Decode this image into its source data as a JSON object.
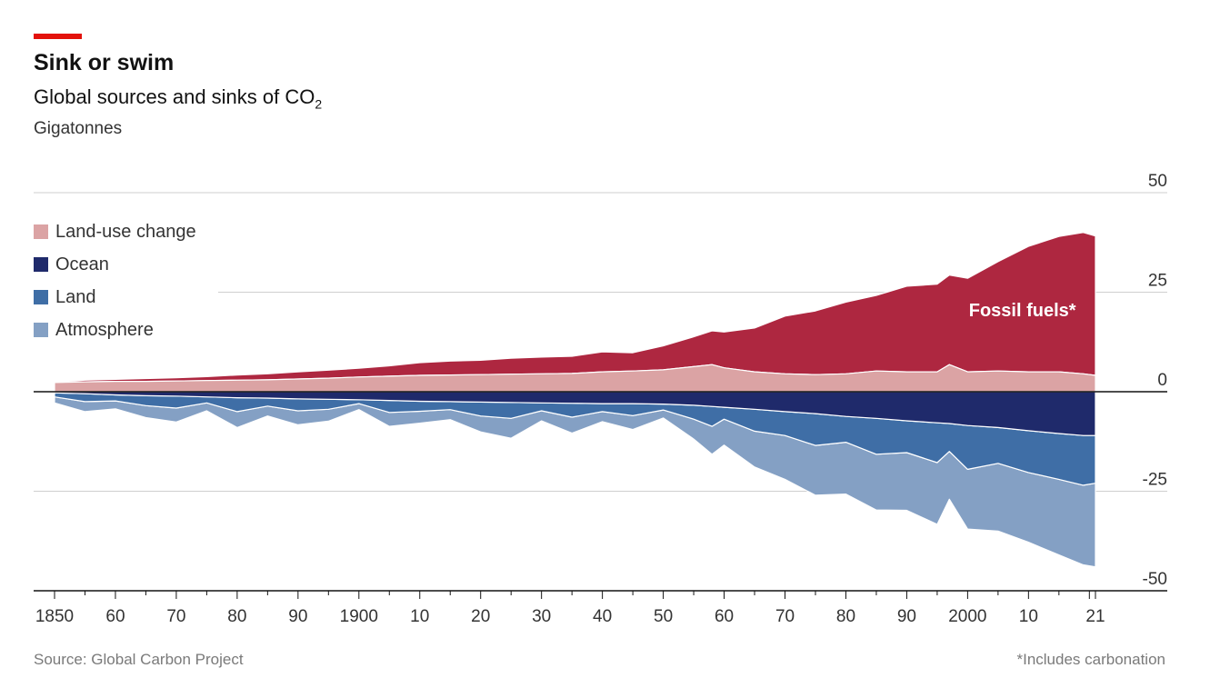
{
  "header": {
    "title": "Sink or swim",
    "subtitle": "Global sources and sinks of CO",
    "subtitle_sub": "2",
    "units": "Gigatonnes"
  },
  "footer": {
    "source": "Source: Global Carbon Project",
    "note": "*Includes carbonation"
  },
  "colors": {
    "accent": "#e3120b",
    "fossil": "#ae2740",
    "land_use": "#dba3a4",
    "ocean": "#1f2a6b",
    "land": "#3f6ea6",
    "atmosphere": "#84a0c4"
  },
  "chart_data": {
    "type": "area",
    "title": "Sink or swim",
    "subtitle": "Global sources and sinks of CO₂",
    "ylabel": "Gigatonnes",
    "ylim": [
      -50,
      50
    ],
    "yticks": [
      50,
      25,
      0,
      -25,
      -50
    ],
    "xlim": [
      1850,
      2021
    ],
    "x_tick_labels": [
      {
        "x": 1850,
        "label": "1850"
      },
      {
        "x": 1860,
        "label": "60"
      },
      {
        "x": 1870,
        "label": "70"
      },
      {
        "x": 1880,
        "label": "80"
      },
      {
        "x": 1890,
        "label": "90"
      },
      {
        "x": 1900,
        "label": "1900"
      },
      {
        "x": 1910,
        "label": "10"
      },
      {
        "x": 1920,
        "label": "20"
      },
      {
        "x": 1930,
        "label": "30"
      },
      {
        "x": 1940,
        "label": "40"
      },
      {
        "x": 1950,
        "label": "50"
      },
      {
        "x": 1960,
        "label": "60"
      },
      {
        "x": 1970,
        "label": "70"
      },
      {
        "x": 1980,
        "label": "80"
      },
      {
        "x": 1990,
        "label": "90"
      },
      {
        "x": 2000,
        "label": "2000"
      },
      {
        "x": 2010,
        "label": "10"
      },
      {
        "x": 2021,
        "label": "21"
      }
    ],
    "x": [
      1850,
      1855,
      1860,
      1865,
      1870,
      1875,
      1880,
      1885,
      1890,
      1895,
      1900,
      1905,
      1910,
      1915,
      1920,
      1925,
      1930,
      1935,
      1940,
      1945,
      1950,
      1955,
      1958,
      1960,
      1965,
      1970,
      1975,
      1980,
      1985,
      1990,
      1995,
      1997,
      2000,
      2005,
      2010,
      2015,
      2019,
      2021
    ],
    "series": [
      {
        "name": "Fossil fuels*",
        "sign": 1,
        "values": [
          0.2,
          0.4,
          0.5,
          0.7,
          0.8,
          1.0,
          1.3,
          1.5,
          1.8,
          2.0,
          2.2,
          2.6,
          3.2,
          3.5,
          3.6,
          4.0,
          4.2,
          4.3,
          5.0,
          4.6,
          6.0,
          7.5,
          8.5,
          9.0,
          11.0,
          14.5,
          16.0,
          18.0,
          19.0,
          21.5,
          22.0,
          22.5,
          23.5,
          27.5,
          31.5,
          34.0,
          35.5,
          35.0
        ]
      },
      {
        "name": "Land-use change",
        "sign": 1,
        "values": [
          2.3,
          2.5,
          2.6,
          2.6,
          2.7,
          2.8,
          2.9,
          3.0,
          3.2,
          3.4,
          3.7,
          3.9,
          4.1,
          4.2,
          4.3,
          4.4,
          4.5,
          4.6,
          5.0,
          5.2,
          5.5,
          6.3,
          6.8,
          6.0,
          5.0,
          4.5,
          4.3,
          4.5,
          5.2,
          5.0,
          5.0,
          6.8,
          5.0,
          5.2,
          5.0,
          5.0,
          4.5,
          4.1
        ]
      },
      {
        "name": "Ocean",
        "sign": -1,
        "values": [
          0.3,
          0.5,
          0.8,
          1.0,
          1.1,
          1.3,
          1.5,
          1.6,
          1.8,
          1.9,
          2.0,
          2.2,
          2.4,
          2.5,
          2.6,
          2.7,
          2.8,
          2.9,
          3.0,
          3.0,
          3.1,
          3.4,
          3.7,
          3.9,
          4.4,
          5.0,
          5.5,
          6.2,
          6.7,
          7.3,
          7.8,
          8.0,
          8.5,
          9.0,
          9.8,
          10.5,
          11.0,
          11.0
        ]
      },
      {
        "name": "Land",
        "sign": -1,
        "values": [
          1.0,
          2.0,
          1.5,
          2.5,
          3.0,
          1.5,
          3.5,
          2.0,
          3.0,
          2.5,
          1.0,
          3.0,
          2.5,
          2.0,
          3.5,
          4.0,
          2.0,
          3.5,
          2.0,
          3.0,
          1.5,
          3.5,
          5.0,
          3.0,
          5.5,
          6.0,
          8.0,
          6.5,
          9.0,
          8.0,
          10.0,
          7.0,
          11.0,
          9.0,
          10.5,
          11.5,
          12.5,
          12.0
        ]
      },
      {
        "name": "Atmosphere",
        "sign": -1,
        "values": [
          1.5,
          2.5,
          2.0,
          3.0,
          3.5,
          2.0,
          4.0,
          2.5,
          3.5,
          3.0,
          1.5,
          3.5,
          3.0,
          2.5,
          4.0,
          5.0,
          2.5,
          4.0,
          2.5,
          3.5,
          2.0,
          5.0,
          7.0,
          6.5,
          9.0,
          11.0,
          12.5,
          13.0,
          14.0,
          14.5,
          15.5,
          12.0,
          15.0,
          17.0,
          17.5,
          19.0,
          20.0,
          21.0
        ]
      }
    ],
    "annotations": [
      {
        "text": "Fossil fuels*",
        "x": 2009,
        "y": 19
      }
    ],
    "legend": {
      "placement": "top-left",
      "entries": [
        "Land-use change",
        "Ocean",
        "Land",
        "Atmosphere"
      ]
    },
    "grid": true
  }
}
